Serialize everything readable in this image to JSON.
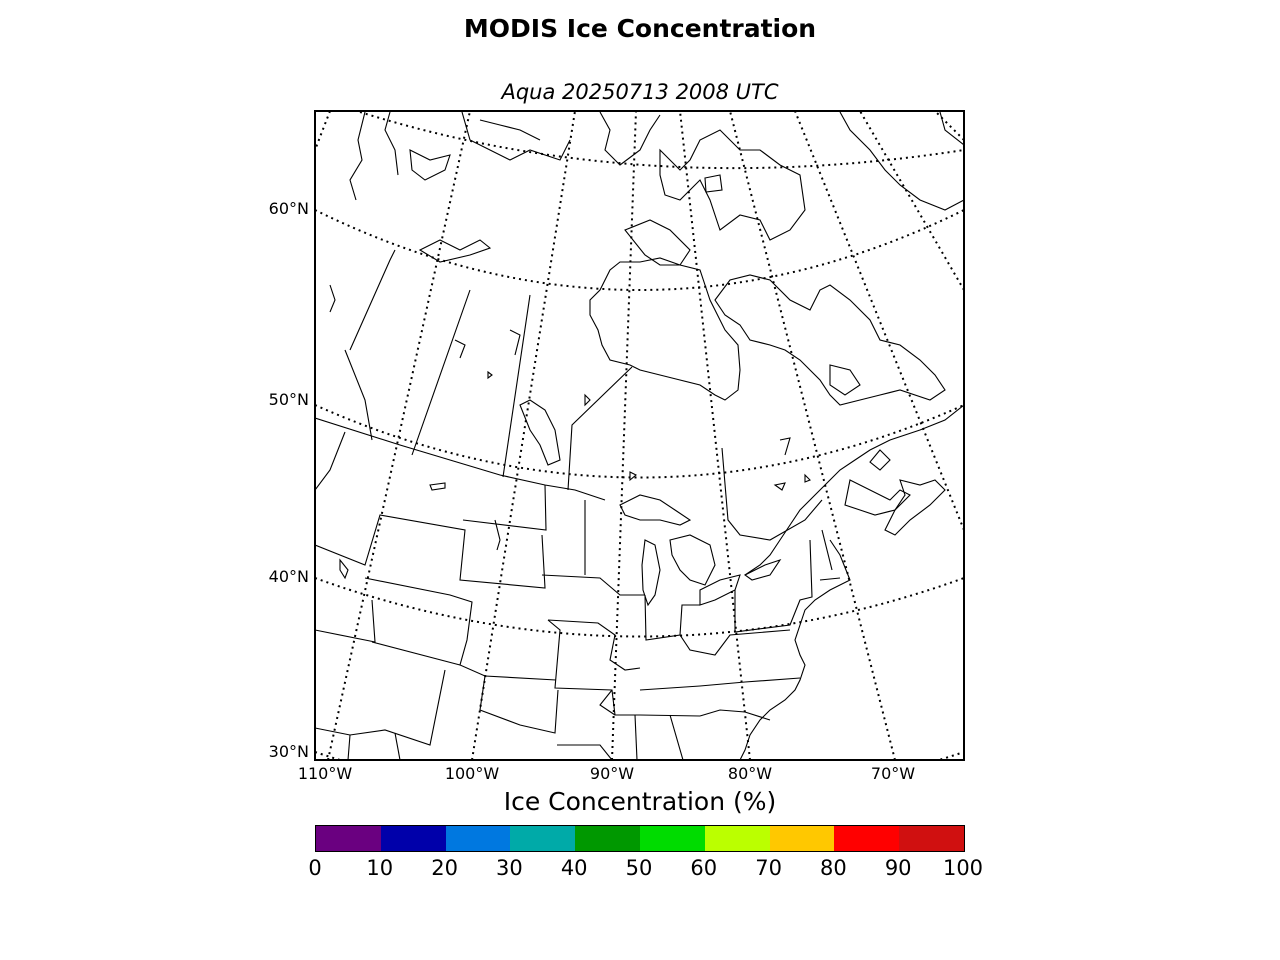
{
  "title": "MODIS Ice Concentration",
  "subtitle": "Aqua 20250713 2008 UTC",
  "map": {
    "lat_labels": [
      "60°N",
      "50°N",
      "40°N",
      "30°N"
    ],
    "lon_labels": [
      "110°W",
      "100°W",
      "90°W",
      "80°W",
      "70°W"
    ]
  },
  "colorbar": {
    "label": "Ice Concentration (%)",
    "ticks": [
      "0",
      "10",
      "20",
      "30",
      "40",
      "50",
      "60",
      "70",
      "80",
      "90",
      "100"
    ],
    "colors": [
      "#6a0080",
      "#0000aa",
      "#0078e0",
      "#00aaa8",
      "#009800",
      "#00dc00",
      "#bbff00",
      "#ffc800",
      "#ff0000",
      "#d01010"
    ]
  }
}
